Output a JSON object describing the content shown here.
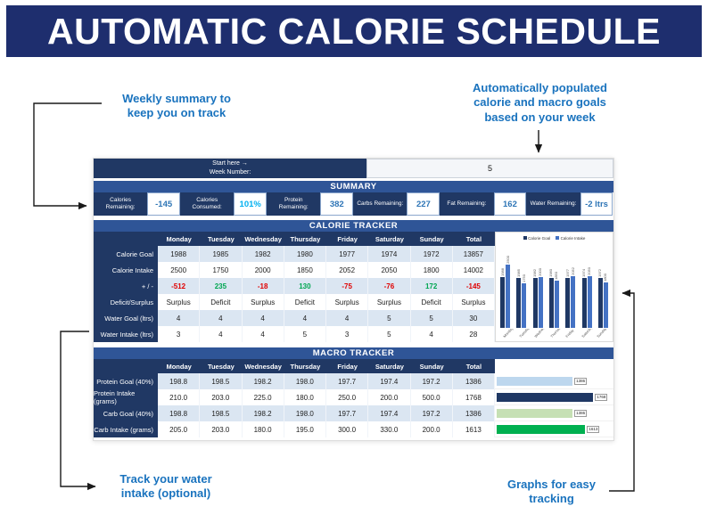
{
  "banner": {
    "title": "AUTOMATIC CALORIE SCHEDULE"
  },
  "annotations": {
    "top_left": "Weekly summary to\nkeep you on track",
    "top_right": "Automatically populated\ncalorie and macro goals\nbased on your week",
    "bottom_left": "Track your water\nintake (optional)",
    "bottom_right": "Graphs for easy\ntracking"
  },
  "sheet": {
    "start_here_label": "Start here →",
    "week_number_label": "Week Number:",
    "week_number_value": "5",
    "summary": {
      "title": "SUMMARY",
      "items": [
        {
          "label": "Calories Remaining:",
          "value": "-145"
        },
        {
          "label": "Calories Consumed:",
          "value": "101%"
        },
        {
          "label": "Protein Remaining:",
          "value": "382"
        },
        {
          "label": "Carbs Remaining:",
          "value": "227"
        },
        {
          "label": "Fat Remaining:",
          "value": "162"
        },
        {
          "label": "Water Remaining:",
          "value": "-2 ltrs"
        }
      ]
    },
    "calorie_tracker": {
      "title": "CALORIE TRACKER",
      "columns": [
        "Monday",
        "Tuesday",
        "Wednesday",
        "Thursday",
        "Friday",
        "Saturday",
        "Sunday",
        "Total"
      ],
      "rows": [
        {
          "label": "Calorie Goal",
          "values": [
            "1988",
            "1985",
            "1982",
            "1980",
            "1977",
            "1974",
            "1972",
            "13857"
          ]
        },
        {
          "label": "Calorie Intake",
          "values": [
            "2500",
            "1750",
            "2000",
            "1850",
            "2052",
            "2050",
            "1800",
            "14002"
          ]
        },
        {
          "label": "+ / -",
          "values": [
            "-512",
            "235",
            "-18",
            "130",
            "-75",
            "-76",
            "172",
            "-145"
          ]
        },
        {
          "label": "Deficit/Surplus",
          "values": [
            "Surplus",
            "Deficit",
            "Surplus",
            "Deficit",
            "Surplus",
            "Surplus",
            "Deficit",
            "Surplus"
          ]
        },
        {
          "label": "Water Goal (ltrs)",
          "values": [
            "4",
            "4",
            "4",
            "4",
            "4",
            "5",
            "5",
            "30"
          ]
        },
        {
          "label": "Water Intake (ltrs)",
          "values": [
            "3",
            "4",
            "4",
            "5",
            "3",
            "5",
            "4",
            "28"
          ]
        }
      ]
    },
    "macro_tracker": {
      "title": "MACRO TRACKER",
      "columns": [
        "Monday",
        "Tuesday",
        "Wednesday",
        "Thursday",
        "Friday",
        "Saturday",
        "Sunday",
        "Total"
      ],
      "rows": [
        {
          "label": "Protein Goal (40%)",
          "values": [
            "198.8",
            "198.5",
            "198.2",
            "198.0",
            "197.7",
            "197.4",
            "197.2",
            "1386"
          ]
        },
        {
          "label": "Protein Intake (grams)",
          "values": [
            "210.0",
            "203.0",
            "225.0",
            "180.0",
            "250.0",
            "200.0",
            "500.0",
            "1768"
          ]
        },
        {
          "label": "Carb Goal (40%)",
          "values": [
            "198.8",
            "198.5",
            "198.2",
            "198.0",
            "197.7",
            "197.4",
            "197.2",
            "1386"
          ]
        },
        {
          "label": "Carb Intake (grams)",
          "values": [
            "205.0",
            "203.0",
            "180.0",
            "195.0",
            "300.0",
            "330.0",
            "200.0",
            "1613"
          ]
        }
      ]
    }
  },
  "chart_data": [
    {
      "type": "bar",
      "title": "",
      "categories": [
        "Monday",
        "Tuesday",
        "Wednesday",
        "Thursday",
        "Friday",
        "Saturday",
        "Sunday"
      ],
      "series": [
        {
          "name": "Calorie Goal",
          "values": [
            1988,
            1985,
            1982,
            1980,
            1977,
            1974,
            1972
          ],
          "color": "#1f3864"
        },
        {
          "name": "Calorie Intake",
          "values": [
            2500,
            1750,
            2000,
            1850,
            2052,
            2050,
            1800
          ],
          "color": "#4472c4"
        }
      ],
      "legend_position": "top",
      "ylim": [
        0,
        2600
      ],
      "grid": false
    },
    {
      "type": "bar",
      "orientation": "horizontal",
      "categories": [
        "Protein Goal",
        "Protein Intake",
        "Carb Goal",
        "Carb Intake"
      ],
      "values": [
        1386,
        1768,
        1386,
        1613
      ],
      "colors": [
        "#bdd7ee",
        "#1f3864",
        "#c6e0b4",
        "#00b050"
      ],
      "xlim": [
        0,
        2100
      ]
    }
  ],
  "colors": {
    "banner_bg": "#1e2e6e",
    "section_bg": "#2f5597",
    "header_bg": "#203864",
    "band_bg": "#dbe6f2",
    "annotation_text": "#1a73be",
    "value_text": "#2e75b6",
    "percent_text": "#00b0f0",
    "negative": "#e00000",
    "positive": "#00a651"
  }
}
